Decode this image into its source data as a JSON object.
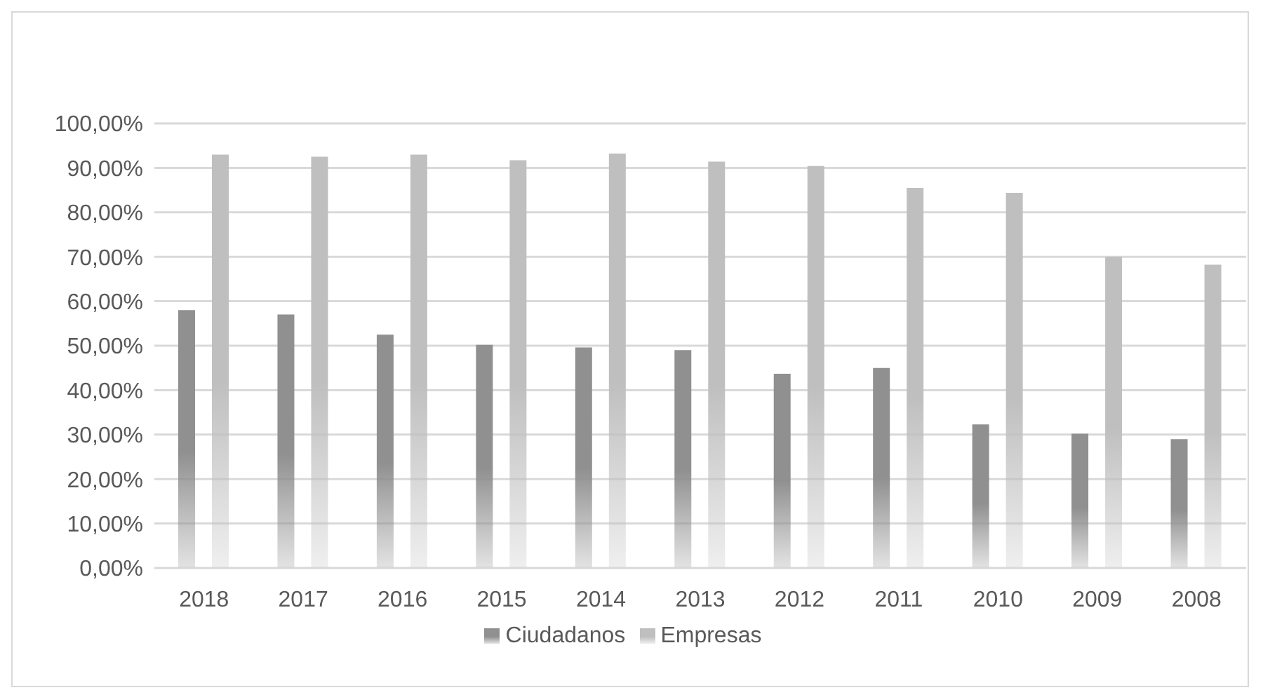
{
  "chart_data": {
    "type": "bar",
    "categories": [
      "2018",
      "2017",
      "2016",
      "2015",
      "2014",
      "2013",
      "2012",
      "2011",
      "2010",
      "2009",
      "2008"
    ],
    "series": [
      {
        "name": "Ciudadanos",
        "color": "#909090",
        "values": [
          58,
          57,
          52.5,
          50.2,
          49.6,
          49,
          43.7,
          45,
          32.3,
          30.2,
          29
        ]
      },
      {
        "name": "Empresas",
        "color": "#bfbfbf",
        "values": [
          93,
          92.5,
          93,
          91.7,
          93.2,
          91.4,
          90.4,
          85.5,
          84.4,
          70,
          68.2
        ]
      }
    ],
    "ylim": [
      0,
      100
    ],
    "yticks": [
      {
        "value": 0,
        "label": "0,00%"
      },
      {
        "value": 10,
        "label": "10,00%"
      },
      {
        "value": 20,
        "label": "20,00%"
      },
      {
        "value": 30,
        "label": "30,00%"
      },
      {
        "value": 40,
        "label": "40,00%"
      },
      {
        "value": 50,
        "label": "50,00%"
      },
      {
        "value": 60,
        "label": "60,00%"
      },
      {
        "value": 70,
        "label": "70,00%"
      },
      {
        "value": 80,
        "label": "80,00%"
      },
      {
        "value": 90,
        "label": "90,00%"
      },
      {
        "value": 100,
        "label": "100,00%"
      }
    ],
    "grid": "y",
    "legend": "bottom"
  }
}
